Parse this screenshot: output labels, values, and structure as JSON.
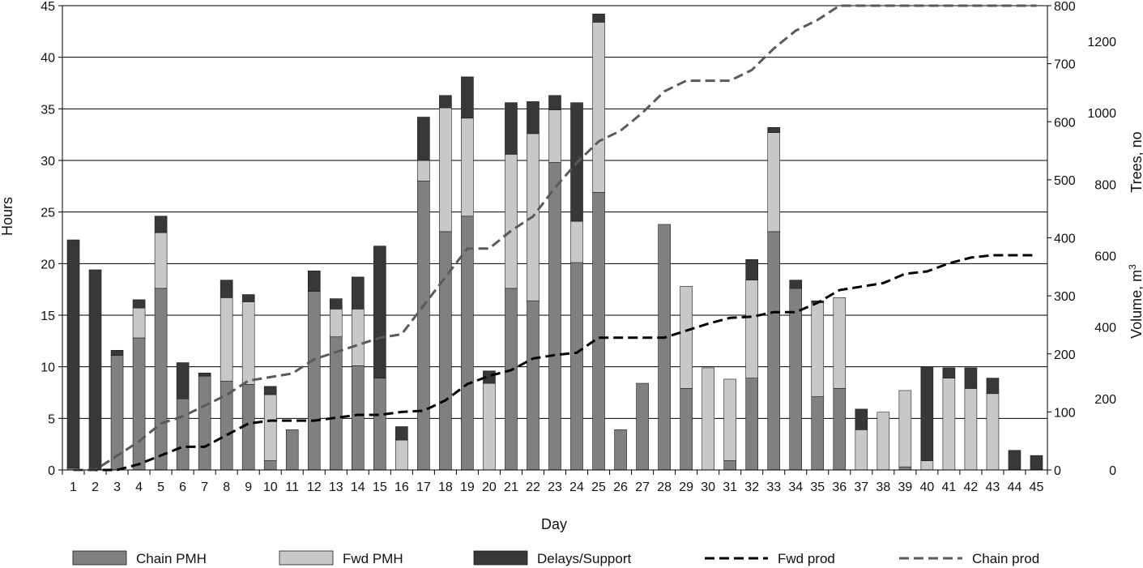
{
  "chart_data": {
    "type": "bar",
    "stacked": true,
    "xlabel": "Day",
    "ylabel": "Hours",
    "ylim": [
      0,
      45
    ],
    "yticks": [
      0,
      5,
      10,
      15,
      20,
      25,
      30,
      35,
      40,
      45
    ],
    "y2label": "Volume, m",
    "y2label_superscript": "3",
    "y2lim": [
      0,
      800
    ],
    "y2ticks": [
      0,
      100,
      200,
      300,
      400,
      500,
      600,
      700,
      800
    ],
    "y3label": "Trees, no",
    "y3lim": [
      0,
      1300
    ],
    "y3ticks": [
      0,
      200,
      400,
      600,
      800,
      1000,
      1200
    ],
    "grid": "horizontal",
    "legend_position": "bottom",
    "categories": [
      "1",
      "2",
      "3",
      "4",
      "5",
      "6",
      "7",
      "8",
      "9",
      "10",
      "11",
      "12",
      "13",
      "14",
      "15",
      "16",
      "17",
      "18",
      "19",
      "20",
      "21",
      "22",
      "23",
      "24",
      "25",
      "26",
      "27",
      "28",
      "29",
      "30",
      "31",
      "32",
      "33",
      "34",
      "35",
      "36",
      "37",
      "38",
      "39",
      "40",
      "41",
      "42",
      "43",
      "44",
      "45"
    ],
    "series": [
      {
        "name": "Chain PMH",
        "kind": "bar",
        "color": "#808080",
        "values": [
          0.2,
          0,
          11.1,
          12.8,
          17.6,
          6.9,
          9.1,
          8.6,
          8.3,
          0.9,
          3.9,
          17.3,
          12.9,
          10.1,
          8.9,
          0,
          28,
          23.1,
          24.6,
          0,
          17.6,
          16.4,
          29.8,
          20.1,
          26.9,
          3.9,
          8.4,
          23.8,
          7.9,
          0,
          0.9,
          8.9,
          23.1,
          17.6,
          7.1,
          7.9,
          0,
          0,
          0.3,
          0,
          0,
          0,
          0,
          0,
          0
        ]
      },
      {
        "name": "Fwd PMH",
        "kind": "bar",
        "color": "#c8c8c8",
        "values": [
          0,
          0,
          0,
          2.9,
          5.4,
          0,
          0,
          8.1,
          8,
          6.4,
          0,
          0,
          2.7,
          5.5,
          0,
          2.9,
          2,
          12,
          9.5,
          8.4,
          13,
          16.2,
          5.1,
          4,
          16.5,
          0,
          0,
          0,
          9.9,
          9.9,
          7.9,
          9.5,
          9.6,
          0,
          9.1,
          8.8,
          3.9,
          5.6,
          7.4,
          0.9,
          8.9,
          7.9,
          7.4,
          0,
          0
        ]
      },
      {
        "name": "Delays/Support",
        "kind": "bar",
        "color": "#383838",
        "values": [
          22.1,
          19.4,
          0.5,
          0.8,
          1.6,
          3.5,
          0.3,
          1.7,
          0.7,
          0.8,
          0,
          2,
          1,
          3.1,
          12.8,
          1.3,
          4.2,
          1.2,
          4,
          1.2,
          5,
          3.1,
          1.4,
          11.5,
          0.8,
          0,
          0,
          0,
          0,
          0,
          0,
          2,
          0.5,
          0.8,
          0.2,
          0,
          2,
          0,
          0,
          9.1,
          1,
          2,
          1.5,
          1.9,
          1.4
        ]
      },
      {
        "name": "Fwd prod",
        "kind": "line",
        "axis": "Volume",
        "color": "#000000",
        "dash": "12,6",
        "values": [
          0,
          0,
          0,
          10,
          25,
          40,
          40,
          60,
          80,
          85,
          85,
          85,
          90,
          95,
          95,
          100,
          102,
          120,
          148,
          162,
          172,
          192,
          198,
          202,
          228,
          228,
          228,
          228,
          240,
          252,
          262,
          264,
          272,
          272,
          288,
          310,
          316,
          322,
          338,
          342,
          356,
          366,
          370,
          370,
          370
        ]
      },
      {
        "name": "Chain prod",
        "kind": "line",
        "axis": "Trees",
        "color": "#5a5a5a",
        "dash": "12,6",
        "values": [
          0,
          0,
          40,
          80,
          130,
          150,
          180,
          210,
          250,
          260,
          270,
          310,
          330,
          350,
          370,
          380,
          460,
          540,
          620,
          620,
          670,
          710,
          790,
          860,
          920,
          950,
          1000,
          1060,
          1090,
          1090,
          1090,
          1120,
          1180,
          1230,
          1260,
          1300,
          1300,
          1300,
          1300,
          1300,
          1300,
          1300,
          1300,
          1300,
          1300
        ]
      }
    ]
  }
}
